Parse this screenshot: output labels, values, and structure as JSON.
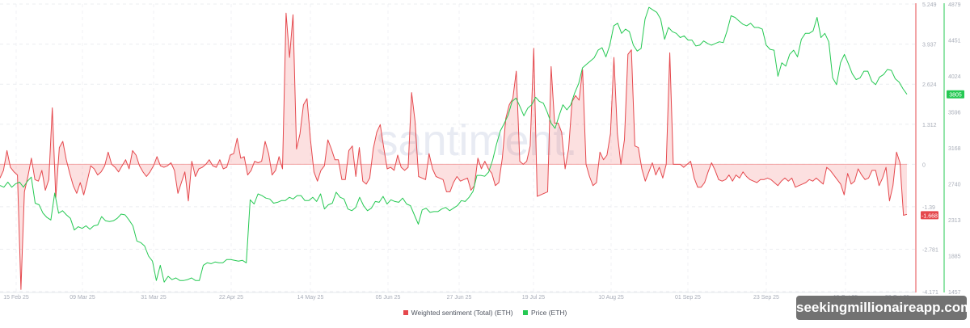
{
  "chart_data": {
    "type": "line",
    "title": "",
    "watermark": "santiment.",
    "x_ticks": [
      "15 Feb 25",
      "09 Mar 25",
      "31 Mar 25",
      "22 Apr 25",
      "14 May 25",
      "05 Jun 25",
      "27 Jun 25",
      "19 Jul 25",
      "10 Aug 25",
      "01 Sep 25",
      "23 Sep 25",
      "15 Oct 25",
      "30 Oct 25"
    ],
    "left_axis_note": "none",
    "y_axes": [
      {
        "id": "sentiment",
        "name": "Weighted sentiment (Total) (ETH)",
        "color": "#e5484d",
        "ticks": [
          5.249,
          3.937,
          2.624,
          1.312,
          0,
          -1.39,
          -2.781,
          -4.171
        ],
        "range": [
          -4.171,
          5.249
        ],
        "current_value": "-1.668"
      },
      {
        "id": "price",
        "name": "Price (ETH)",
        "color": "#26c953",
        "ticks": [
          4879,
          4451,
          4024,
          3596,
          3168,
          2740,
          2313,
          1885,
          1457
        ],
        "range": [
          1457,
          4879
        ],
        "current_value": "3805"
      }
    ],
    "series": [
      {
        "name": "Weighted sentiment (Total) (ETH)",
        "axis": "sentiment",
        "color": "#e5484d",
        "fill": "rgba(240,100,100,0.2)",
        "values": [
          -0.45,
          -0.2,
          0.45,
          -0.1,
          -0.25,
          -0.35,
          -4.1,
          -0.9,
          -0.4,
          0.2,
          -0.5,
          -0.55,
          -0.2,
          -0.85,
          -0.5,
          1.85,
          -1.1,
          0.55,
          0.75,
          0.15,
          -0.3,
          -0.7,
          -0.95,
          -0.6,
          -1.0,
          -0.55,
          -0.05,
          -0.15,
          -0.35,
          -0.25,
          -0.05,
          0.4,
          0.0,
          -0.1,
          -0.25,
          -0.05,
          0.15,
          -0.15,
          0.45,
          0.3,
          -0.05,
          -0.25,
          -0.4,
          -0.25,
          -0.05,
          0.25,
          -0.05,
          -0.1,
          -0.05,
          0.05,
          -0.2,
          -0.95,
          -0.6,
          -0.25,
          -1.2,
          0.1,
          -0.4,
          -0.15,
          -0.1,
          0.0,
          0.15,
          -0.05,
          -0.1,
          0.15,
          -0.15,
          -0.1,
          0.3,
          0.35,
          0.85,
          0.2,
          0.25,
          -0.35,
          -0.2,
          0.1,
          0.05,
          0.1,
          0.75,
          0.35,
          -0.35,
          -0.2,
          0.25,
          -0.15,
          4.95,
          3.5,
          4.9,
          0.5,
          1.0,
          1.95,
          2.15,
          0.8,
          -0.25,
          -0.55,
          -0.2,
          -0.05,
          0.8,
          0.5,
          0.15,
          0.15,
          -0.5,
          -0.5,
          0.45,
          0.6,
          -0.4,
          0.55,
          -0.55,
          -0.65,
          -0.45,
          0.5,
          1.05,
          1.3,
          0.55,
          -0.15,
          -0.1,
          -0.2,
          0.3,
          -0.1,
          -0.2,
          -0.1,
          2.35,
          1.4,
          -0.4,
          -0.45,
          -0.5,
          0.35,
          -0.15,
          -0.4,
          -0.45,
          -0.5,
          -0.9,
          -0.9,
          -0.6,
          -0.4,
          -0.55,
          -0.5,
          -0.45,
          -0.85,
          -0.7,
          0.2,
          -0.15,
          0.1,
          -0.15,
          -0.3,
          -0.7,
          -0.6,
          0.2,
          1.5,
          1.95,
          2.15,
          3.05,
          0.1,
          0.0,
          0.1,
          0.6,
          3.8,
          -1.05,
          -1.0,
          -0.95,
          -0.9,
          3.2,
          1.35,
          1.35,
          1.05,
          -0.15,
          0.5,
          2.05,
          2.25,
          2.1,
          3.1,
          0.0,
          -0.4,
          -0.7,
          -0.6,
          0.4,
          0.15,
          0.3,
          1.0,
          3.5,
          1.0,
          0.0,
          0.8,
          3.6,
          3.75,
          0.6,
          0.55,
          -0.15,
          -0.55,
          -0.25,
          0.05,
          -0.35,
          -0.1,
          -0.45,
          0.0,
          3.65,
          0.0,
          0.0,
          0.0,
          -0.1,
          0.0,
          0.1,
          -0.45,
          -0.75,
          -0.75,
          -0.6,
          -0.25,
          0.05,
          -0.2,
          -0.5,
          -0.55,
          -0.5,
          -0.35,
          -0.55,
          -0.35,
          -0.45,
          -0.25,
          -0.4,
          -0.5,
          -0.55,
          -0.6,
          -0.5,
          -0.5,
          -0.45,
          -0.5,
          -0.6,
          -0.7,
          -0.55,
          -0.45,
          -0.55,
          -0.45,
          -0.75,
          -0.7,
          -0.65,
          -0.6,
          -0.5,
          -0.55,
          -0.45,
          -0.55,
          -0.65,
          -0.1,
          -0.2,
          -0.35,
          -0.5,
          -0.65,
          -1.0,
          -0.3,
          -0.65,
          -0.55,
          -0.15,
          -0.35,
          -0.5,
          -0.45,
          -0.2,
          -0.2,
          -0.7,
          -0.45,
          -0.1,
          -1.2,
          -0.7,
          0.4,
          0.05,
          -1.67,
          -1.64
        ]
      },
      {
        "name": "Price (ETH)",
        "axis": "price",
        "color": "#26c953",
        "fill": "none",
        "values": [
          2720,
          2700,
          2760,
          2700,
          2740,
          2760,
          2700,
          2770,
          2820,
          2510,
          2490,
          2390,
          2340,
          2310,
          2630,
          2390,
          2420,
          2370,
          2330,
          2190,
          2230,
          2210,
          2240,
          2200,
          2240,
          2250,
          2350,
          2300,
          2290,
          2300,
          2330,
          2380,
          2370,
          2310,
          2240,
          2060,
          2040,
          2000,
          1880,
          1820,
          1590,
          1770,
          1570,
          1640,
          1600,
          1620,
          1590,
          1590,
          1600,
          1620,
          1590,
          1590,
          1770,
          1800,
          1790,
          1810,
          1800,
          1800,
          1840,
          1840,
          1830,
          1820,
          1830,
          1800,
          2550,
          2500,
          2620,
          2600,
          2570,
          2560,
          2510,
          2520,
          2540,
          2540,
          2580,
          2560,
          2600,
          2600,
          2540,
          2540,
          2580,
          2530,
          2620,
          2440,
          2490,
          2510,
          2640,
          2580,
          2560,
          2440,
          2420,
          2460,
          2580,
          2480,
          2420,
          2450,
          2530,
          2520,
          2590,
          2500,
          2550,
          2530,
          2520,
          2570,
          2500,
          2480,
          2370,
          2260,
          2430,
          2450,
          2400,
          2410,
          2410,
          2440,
          2460,
          2420,
          2450,
          2480,
          2540,
          2530,
          2580,
          2650,
          2840,
          2840,
          2830,
          2880,
          3020,
          3210,
          3370,
          3460,
          3560,
          3720,
          3760,
          3660,
          3550,
          3640,
          3680,
          3770,
          3720,
          3700,
          3590,
          3460,
          3400,
          3550,
          3680,
          3620,
          3680,
          3820,
          3930,
          4120,
          4160,
          4200,
          4240,
          4330,
          4360,
          4250,
          4390,
          4620,
          4650,
          4530,
          4580,
          4550,
          4390,
          4320,
          4350,
          4700,
          4840,
          4810,
          4780,
          4700,
          4460,
          4600,
          4550,
          4530,
          4480,
          4500,
          4450,
          4450,
          4380,
          4390,
          4440,
          4410,
          4390,
          4410,
          4430,
          4420,
          4560,
          4740,
          4720,
          4680,
          4640,
          4620,
          4650,
          4600,
          4600,
          4580,
          4390,
          4340,
          4330,
          4020,
          4180,
          4140,
          4280,
          4330,
          4250,
          4460,
          4530,
          4530,
          4560,
          4720,
          4480,
          4530,
          4430,
          4000,
          3920,
          4180,
          4280,
          4170,
          4050,
          3980,
          4000,
          4080,
          4080,
          3960,
          3920,
          4010,
          4040,
          4100,
          4090,
          3990,
          3950,
          3870,
          3805
        ]
      }
    ],
    "legend": {
      "position": "bottom-center",
      "items": [
        "Weighted sentiment (Total) (ETH)",
        "Price (ETH)"
      ]
    },
    "grid": true
  },
  "legend": {
    "sentiment_label": "Weighted sentiment (Total) (ETH)",
    "price_label": "Price (ETH)",
    "sentiment_color": "#e5484d",
    "price_color": "#26c953"
  },
  "overlay": {
    "site_watermark": "seekingmillionaireapp.com"
  }
}
